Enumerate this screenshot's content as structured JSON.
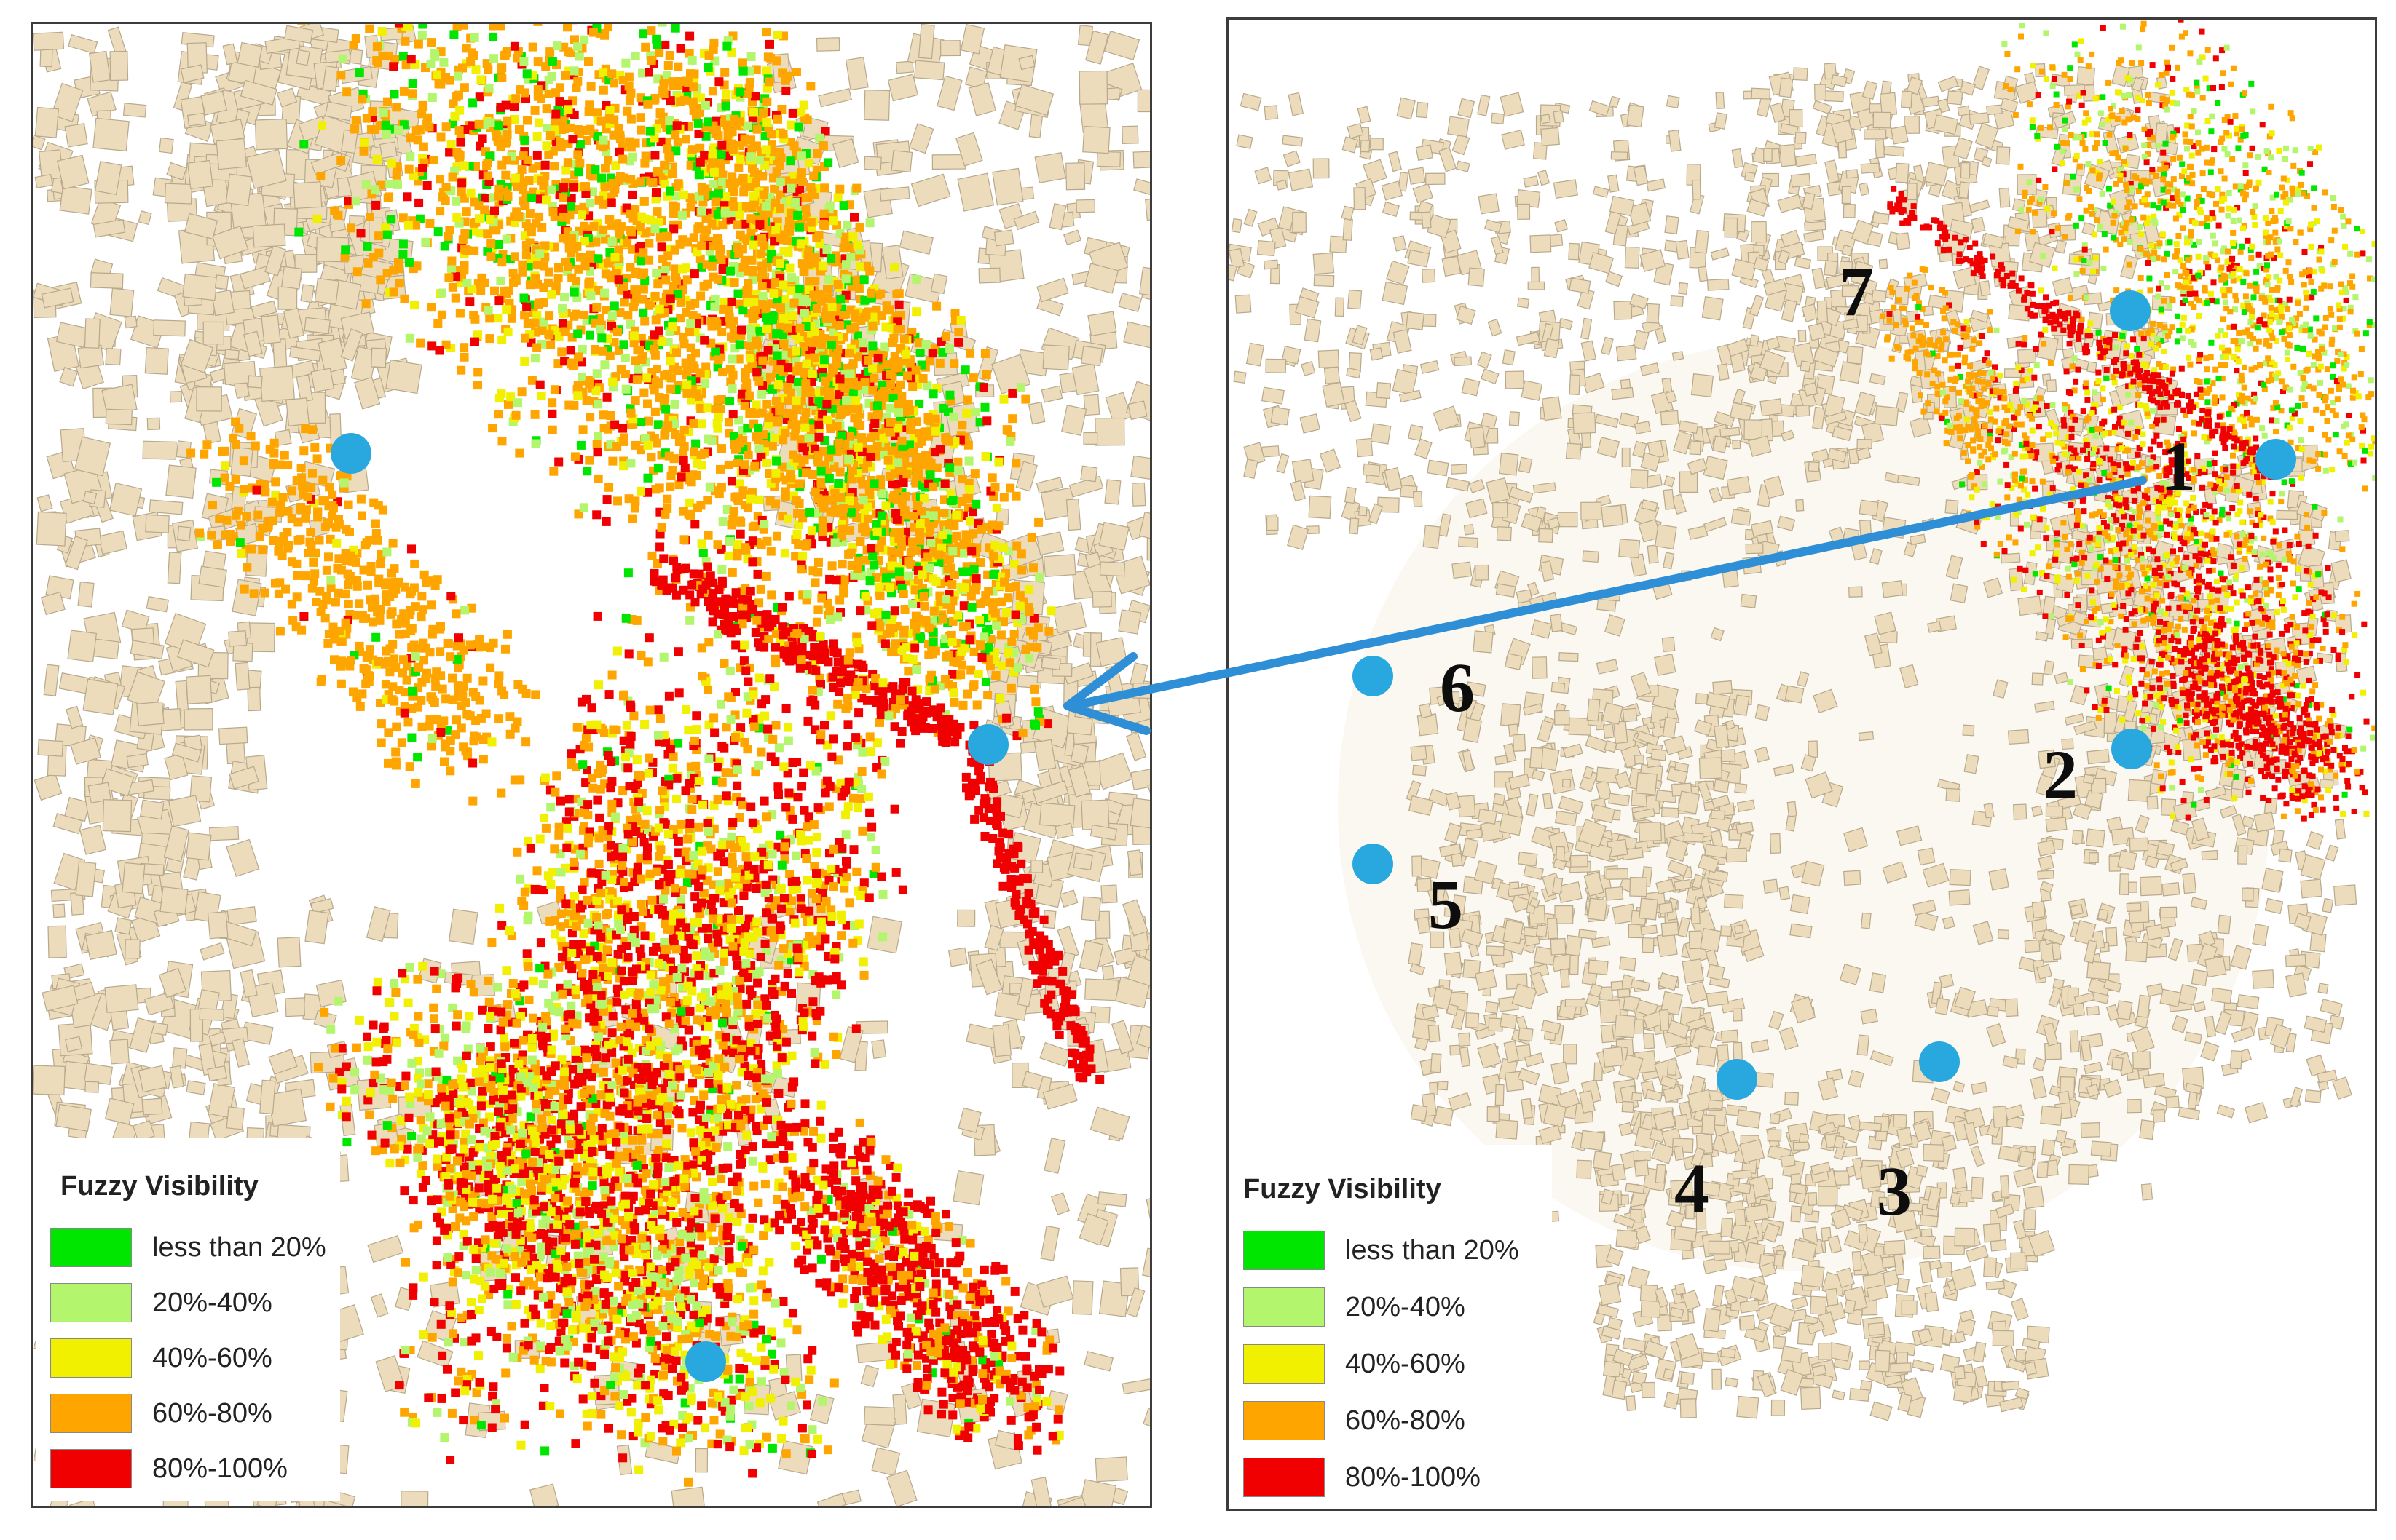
{
  "left_map": {
    "legend": {
      "title": "Fuzzy Visibility",
      "items": [
        {
          "label": "less than 20%",
          "color": "#00e600"
        },
        {
          "label": "20%-40%",
          "color": "#b4f56e"
        },
        {
          "label": "40%-60%",
          "color": "#f0f000"
        },
        {
          "label": "60%-80%",
          "color": "#ffa500"
        },
        {
          "label": "80%-100%",
          "color": "#f00000"
        }
      ]
    }
  },
  "right_map": {
    "legend": {
      "title": "Fuzzy Visibility",
      "items": [
        {
          "label": "less than 20%",
          "color": "#00e600"
        },
        {
          "label": "20%-40%",
          "color": "#b4f56e"
        },
        {
          "label": "40%-60%",
          "color": "#f0f000"
        },
        {
          "label": "60%-80%",
          "color": "#ffa500"
        },
        {
          "label": "80%-100%",
          "color": "#f00000"
        }
      ]
    },
    "sites": [
      {
        "label": "1"
      },
      {
        "label": "2"
      },
      {
        "label": "3"
      },
      {
        "label": "4"
      },
      {
        "label": "5"
      },
      {
        "label": "6"
      },
      {
        "label": "7"
      }
    ]
  },
  "colors": {
    "building_fill": "#ecdcbc",
    "building_stroke": "#b8a98c",
    "viewpoint": "#29a8e0",
    "connector_arrow": "#2f8fd6"
  },
  "icons": {
    "viewpoint_marker": "viewpoint-marker-icon",
    "connector": "arrow-icon"
  }
}
